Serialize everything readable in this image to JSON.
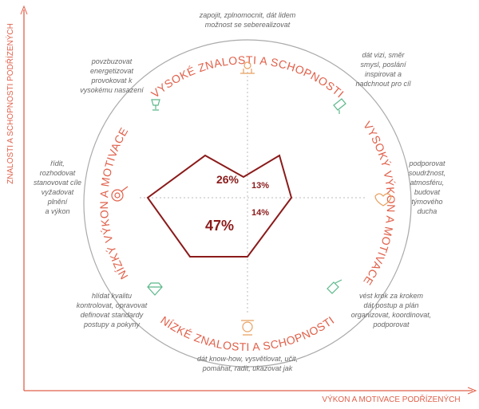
{
  "axes": {
    "y_label": "ZNALOSTI A SCHOPNOSTI PODŘÍZENÝCH",
    "x_label": "VÝKON A MOTIVACE PODŘÍZENÝCH"
  },
  "circle_labels": {
    "top": "VYSOKÉ ZNALOSTI A SCHOPNOSTI",
    "right": "VYSOKÝ VÝKON A MOTIVACE",
    "bottom": "NÍZKÉ ZNALOSTI A SCHOPNOSTI",
    "left": "NÍZKÝ VÝKON A MOTIVACE"
  },
  "percentages": {
    "top_left": "26%",
    "top_right": "13%",
    "bottom_right": "14%",
    "bottom_left": "47%"
  },
  "notes": {
    "top": [
      "zapojit, zplnomocnit, dát lidem",
      "možnost se seberealizovat"
    ],
    "top_left": [
      "povzbuzovat",
      "energetizovat",
      "provokovat k",
      "vysokému nasazení"
    ],
    "top_right": [
      "dát vizi, směr",
      "smysl, poslání",
      "inspirovat a",
      "nadchnout pro cíl"
    ],
    "right": [
      "podporovat",
      "soudržnost,",
      "atmosféru,",
      "budovat",
      "týmového",
      "ducha"
    ],
    "left": [
      "řídit,",
      "rozhodovat",
      "stanovovat cíle",
      "vyžadovat",
      "plnění",
      "a výkon"
    ],
    "bottom_left": [
      "hlídat kvalitu",
      "kontrolovat, opravovat",
      "definovat standardy",
      "postupy a pokyny"
    ],
    "bottom_right": [
      "vést krok za krokem",
      "dát postup a plán",
      "organizovat, koordinovat,",
      "podporovat"
    ],
    "bottom": [
      "dát know-how, vysvětlovat, učit,",
      "pomáhat, radit, ukazovat jak"
    ]
  }
}
